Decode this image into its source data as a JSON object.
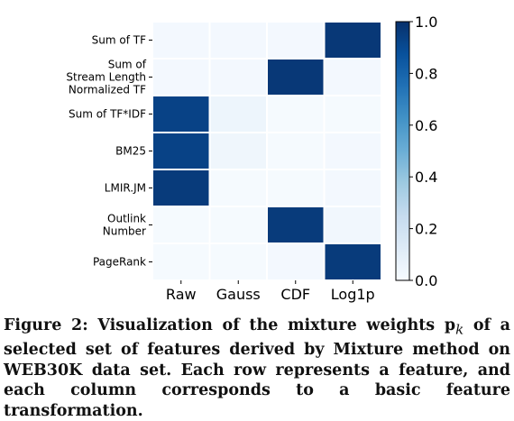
{
  "chart_data": {
    "type": "heatmap",
    "rows": [
      [
        "Sum of TF"
      ],
      [
        "Sum of",
        "Stream Length",
        "Normalized TF"
      ],
      [
        "Sum of TF*IDF"
      ],
      [
        "BM25"
      ],
      [
        "LMIR.JM"
      ],
      [
        "Outlink",
        "Number"
      ],
      [
        "PageRank"
      ]
    ],
    "columns": [
      "Raw",
      "Gauss",
      "CDF",
      "Log1p"
    ],
    "values": [
      [
        0.02,
        0.02,
        0.02,
        0.97
      ],
      [
        0.02,
        0.02,
        0.97,
        0.02
      ],
      [
        0.93,
        0.05,
        0.01,
        0.01
      ],
      [
        0.93,
        0.04,
        0.01,
        0.02
      ],
      [
        0.96,
        0.01,
        0.01,
        0.02
      ],
      [
        0.01,
        0.01,
        0.96,
        0.03
      ],
      [
        0.01,
        0.01,
        0.02,
        0.96
      ]
    ],
    "colorbar": {
      "range": [
        0.0,
        1.0
      ],
      "ticks": [
        "0.0",
        "0.2",
        "0.4",
        "0.6",
        "0.8",
        "1.0"
      ],
      "colormap": "Blues",
      "low_color": "#f7fbff",
      "high_color": "#08306b"
    }
  },
  "caption": {
    "figure_label": "Figure 2:",
    "text_before": "Visualization of the mixture weights p",
    "subscript": "k",
    "text_after": "of a selected set of features derived by Mixture method on WEB30K data set. Each row represents a feature, and each column corresponds to a basic feature transformation."
  }
}
